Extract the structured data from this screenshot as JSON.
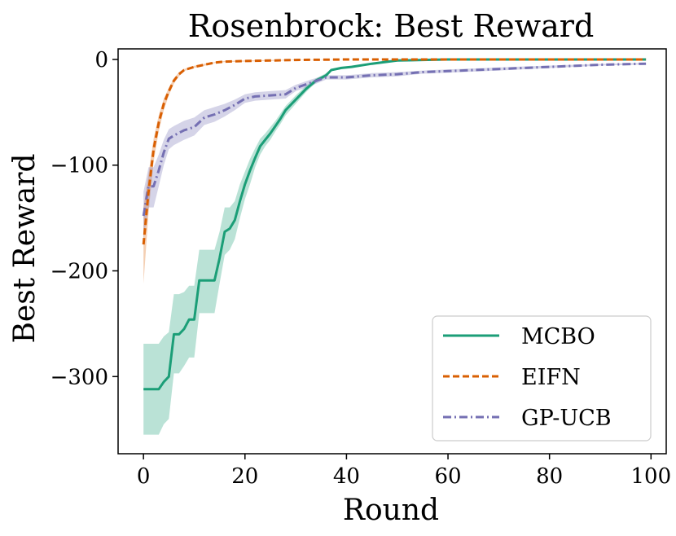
{
  "chart_data": {
    "type": "line",
    "title": "Rosenbrock: Best Reward",
    "xlabel": "Round",
    "ylabel": "Best Reward",
    "xlim": [
      -5,
      103
    ],
    "ylim": [
      -373,
      10
    ],
    "xticks": [
      0,
      20,
      40,
      60,
      80,
      100
    ],
    "xtick_labels": [
      "0",
      "20",
      "40",
      "60",
      "80",
      "100"
    ],
    "yticks": [
      0,
      -100,
      -200,
      -300
    ],
    "ytick_labels": [
      "0",
      "−100",
      "−200",
      "−300"
    ],
    "grid": false,
    "legend_position": "lower-right",
    "series": [
      {
        "name": "MCBO",
        "color": "#1b9e77",
        "style": "solid",
        "x": [
          0,
          1,
          2,
          3,
          4,
          5,
          6,
          7,
          8,
          9,
          10,
          11,
          12,
          13,
          14,
          15,
          16,
          17,
          18,
          19,
          20,
          21,
          22,
          23,
          24,
          25,
          26,
          27,
          28,
          30,
          32,
          34,
          36,
          37,
          39,
          41,
          45,
          50,
          55,
          60,
          70,
          80,
          90,
          99
        ],
        "mean": [
          -312,
          -312,
          -312,
          -312,
          -305,
          -300,
          -260,
          -260,
          -255,
          -246,
          -246,
          -209,
          -209,
          -209,
          -209,
          -188,
          -163,
          -160,
          -152,
          -134,
          -118,
          -105,
          -93,
          -82,
          -76,
          -70,
          -63,
          -56,
          -48,
          -38,
          -28,
          -20,
          -15,
          -10,
          -8,
          -7,
          -4,
          -1,
          -0.5,
          0,
          0,
          0,
          0,
          0
        ],
        "upper": [
          -269,
          -269,
          -269,
          -269,
          -262,
          -258,
          -222,
          -222,
          -220,
          -214,
          -214,
          -180,
          -180,
          -180,
          -180,
          -163,
          -140,
          -140,
          -134,
          -118,
          -106,
          -94,
          -84,
          -75,
          -70,
          -64,
          -58,
          -51,
          -44,
          -34,
          -25,
          -18,
          -13,
          -9,
          -7,
          -6,
          -3.5,
          -1,
          -0.5,
          0,
          0,
          0,
          0,
          0
        ],
        "lower": [
          -355,
          -355,
          -355,
          -355,
          -345,
          -340,
          -297,
          -297,
          -290,
          -282,
          -282,
          -240,
          -240,
          -240,
          -240,
          -212,
          -185,
          -180,
          -170,
          -150,
          -132,
          -118,
          -102,
          -90,
          -82,
          -76,
          -68,
          -61,
          -53,
          -42,
          -31,
          -22,
          -17,
          -11,
          -9,
          -8,
          -4.5,
          -1.5,
          -0.5,
          0,
          0,
          0,
          0,
          0
        ]
      },
      {
        "name": "EIFN",
        "color": "#d95f02",
        "style": "dashed",
        "x": [
          0,
          1,
          2,
          3,
          4,
          5,
          6,
          7,
          8,
          10,
          12,
          14,
          16,
          20,
          25,
          30,
          40,
          50,
          60,
          80,
          99
        ],
        "mean": [
          -175,
          -125,
          -85,
          -60,
          -42,
          -30,
          -20,
          -14,
          -10,
          -7,
          -5,
          -3,
          -2,
          -1.5,
          -1,
          -0.5,
          0,
          0,
          0,
          0,
          0
        ],
        "upper": [
          -140,
          -108,
          -75,
          -53,
          -37,
          -27,
          -18,
          -12,
          -9,
          -6,
          -4,
          -2.5,
          -1.5,
          -1,
          -0.5,
          -0.3,
          0,
          0,
          0,
          0,
          0
        ],
        "lower": [
          -212,
          -145,
          -97,
          -68,
          -48,
          -34,
          -23,
          -16,
          -11,
          -8,
          -6,
          -3.5,
          -2.5,
          -2,
          -1.5,
          -0.7,
          0,
          0,
          0,
          0,
          0
        ]
      },
      {
        "name": "GP-UCB",
        "color": "#7570b3",
        "style": "dashdot",
        "x": [
          0,
          1,
          2,
          3,
          4,
          5,
          6,
          8,
          10,
          12,
          14,
          16,
          18,
          20,
          22,
          25,
          28,
          30,
          33,
          36,
          40,
          45,
          50,
          55,
          60,
          70,
          80,
          90,
          99
        ],
        "mean": [
          -148,
          -120,
          -120,
          -105,
          -88,
          -75,
          -72,
          -67,
          -64,
          -55,
          -52,
          -48,
          -43,
          -37,
          -35,
          -34,
          -33,
          -27,
          -22,
          -17,
          -17,
          -15,
          -14,
          -12,
          -11,
          -9,
          -7,
          -5,
          -4
        ],
        "upper": [
          -125,
          -102,
          -102,
          -90,
          -76,
          -66,
          -63,
          -58,
          -55,
          -48,
          -45,
          -42,
          -38,
          -33,
          -31,
          -30,
          -29,
          -24,
          -19,
          -15,
          -15,
          -13,
          -12,
          -10.5,
          -9.5,
          -7.5,
          -5.8,
          -4.2,
          -3.2
        ],
        "lower": [
          -170,
          -140,
          -140,
          -120,
          -100,
          -85,
          -81,
          -76,
          -72,
          -62,
          -59,
          -54,
          -48,
          -41,
          -39,
          -38,
          -37,
          -30,
          -25,
          -19,
          -19,
          -17,
          -16,
          -13.5,
          -12.5,
          -10.5,
          -8.2,
          -5.8,
          -4.8
        ]
      }
    ]
  }
}
